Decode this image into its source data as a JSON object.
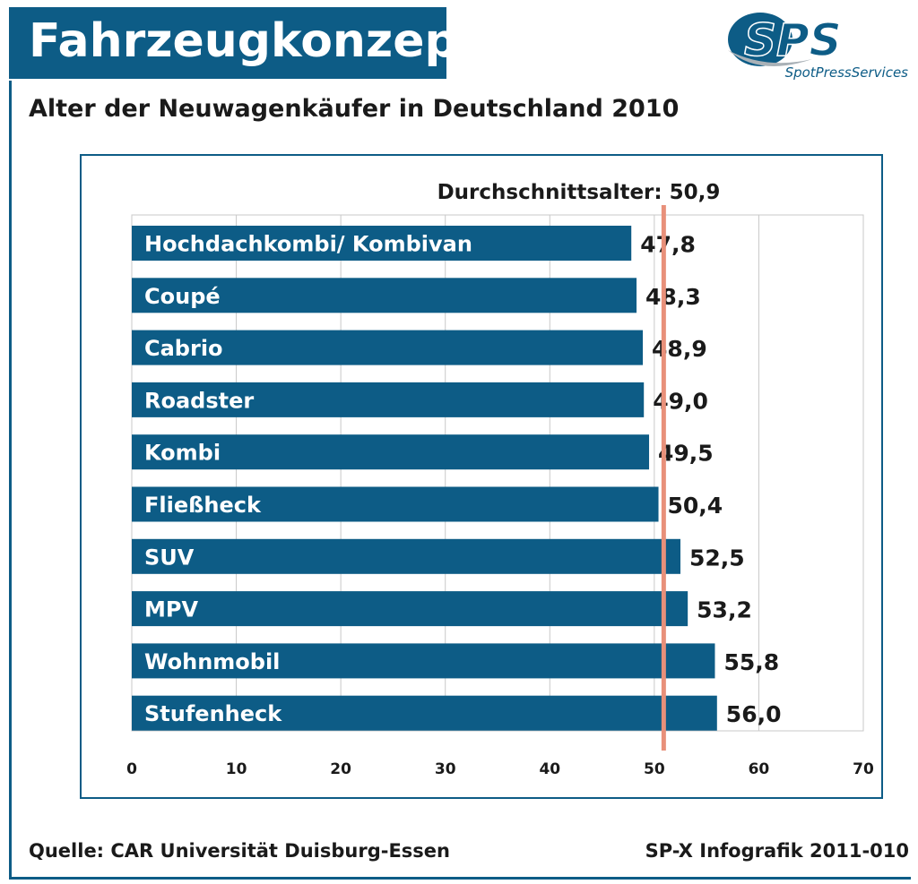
{
  "header": {
    "title": "Fahrzeugkonzept",
    "logo_mark": "SPS",
    "logo_text": "SpotPressServices"
  },
  "chart_data": {
    "type": "bar",
    "orientation": "horizontal",
    "title": "Alter der Neuwagenkäufer in Deutschland 2010",
    "categories": [
      "Hochdachkombi/ Kombivan",
      "Coupé",
      "Cabrio",
      "Roadster",
      "Kombi",
      "Fließheck",
      "SUV",
      "MPV",
      "Wohnmobil",
      "Stufenheck"
    ],
    "values": [
      47.8,
      48.3,
      48.9,
      49.0,
      49.5,
      50.4,
      52.5,
      53.2,
      55.8,
      56.0
    ],
    "value_labels": [
      "47,8",
      "48,3",
      "48,9",
      "49,0",
      "49,5",
      "50,4",
      "52,5",
      "53,2",
      "55,8",
      "56,0"
    ],
    "xlim": [
      0,
      70
    ],
    "xticks": [
      0,
      10,
      20,
      30,
      40,
      50,
      60,
      70
    ],
    "grid": true,
    "reference_line": {
      "value": 50.9,
      "label": "Durchschnittsalter: 50,9",
      "color": "#e8907a"
    },
    "bar_color": "#0d5c86"
  },
  "footer": {
    "source": "Quelle: CAR Universität Duisburg-Essen",
    "credit": "SP-X Infografik 2011-010"
  },
  "colors": {
    "accent": "#0d5c86",
    "logo_grey": "#a9b1b7"
  }
}
